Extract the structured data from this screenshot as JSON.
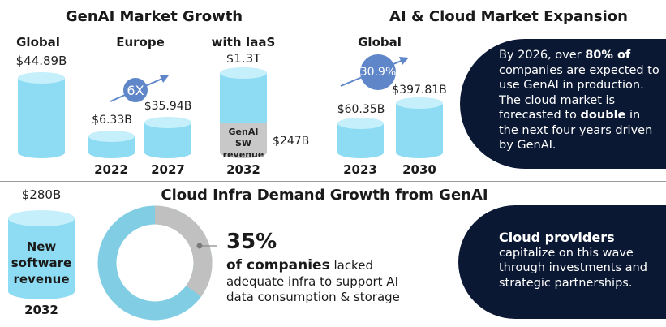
{
  "left_section": {
    "title": "GenAI Market Growth",
    "global": {
      "label": "Global",
      "value": "$44.89B"
    },
    "europe": {
      "label": "Europe",
      "growth": "6X",
      "bars": [
        {
          "year": "2022",
          "value": "$6.33B"
        },
        {
          "year": "2027",
          "value": "$35.94B"
        }
      ]
    },
    "iaas": {
      "label": "with IaaS",
      "total": "$1.3T",
      "segment_label": "GenAI SW revenue",
      "segment_value": "$247B",
      "year": "2032"
    }
  },
  "right_section": {
    "title": "AI & Cloud Market Expansion",
    "global": {
      "label": "Global",
      "growth": "30.9%",
      "bars": [
        {
          "year": "2023",
          "value": "$60.35B"
        },
        {
          "year": "2030",
          "value": "$397.81B"
        }
      ]
    },
    "callout": {
      "p1_pre": "By 2026, over ",
      "p1_bold": "80% of",
      "p1_post": " companies are expected to use GenAI in production.",
      "p2_pre": "The cloud market is forecasted to ",
      "p2_bold": "double",
      "p2_post": " in the next four years driven by GenAI."
    }
  },
  "bottom_section": {
    "title": "Cloud Infra Demand Growth from GenAI",
    "software": {
      "value": "$280B",
      "line1": "New",
      "line2": "software",
      "line3": "revenue",
      "year": "2032"
    },
    "donut": {
      "percent": 35,
      "percent_label": "35%",
      "bold_text": "of companies",
      "text1": " lacked",
      "text2": "adequate infra to support AI",
      "text3": "data consumption & storage"
    },
    "callout": {
      "bold": "Cloud providers",
      "line1": "capitalize on this wave",
      "line2": "through investments and",
      "line3": "strategic partnerships."
    }
  },
  "colors": {
    "cylinder": "#8ddcf3",
    "cylinder_top": "#c5effb",
    "bubble": "#5f86c8",
    "callout_bg": "#0b1833",
    "donut_main": "#80cde4",
    "donut_highlight": "#c0c0c0"
  }
}
